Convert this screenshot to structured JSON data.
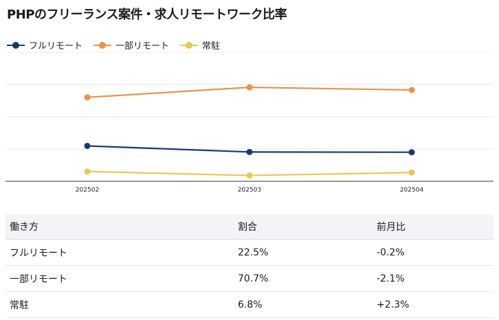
{
  "title": "PHPのフリーランス案件・求人リモートワーク比率",
  "chart_data": {
    "type": "line",
    "title": "PHPのフリーランス案件・求人リモートワーク比率",
    "categories": [
      "202502",
      "202503",
      "202504"
    ],
    "ylim": [
      0,
      100
    ],
    "grid": true,
    "legend_position": "top-left",
    "series": [
      {
        "name": "フルリモート",
        "color": "#173a6e",
        "values": [
          27.4,
          22.7,
          22.5
        ]
      },
      {
        "name": "一部リモート",
        "color": "#e8924a",
        "values": [
          65.0,
          72.8,
          70.7
        ]
      },
      {
        "name": "常駐",
        "color": "#e9c84e",
        "values": [
          7.6,
          4.5,
          6.8
        ]
      }
    ]
  },
  "table": {
    "headers": [
      "働き方",
      "割合",
      "前月比"
    ],
    "rows": [
      [
        "フルリモート",
        "22.5%",
        "-0.2%"
      ],
      [
        "一部リモート",
        "70.7%",
        "-2.1%"
      ],
      [
        "常駐",
        "6.8%",
        "+2.3%"
      ]
    ]
  }
}
